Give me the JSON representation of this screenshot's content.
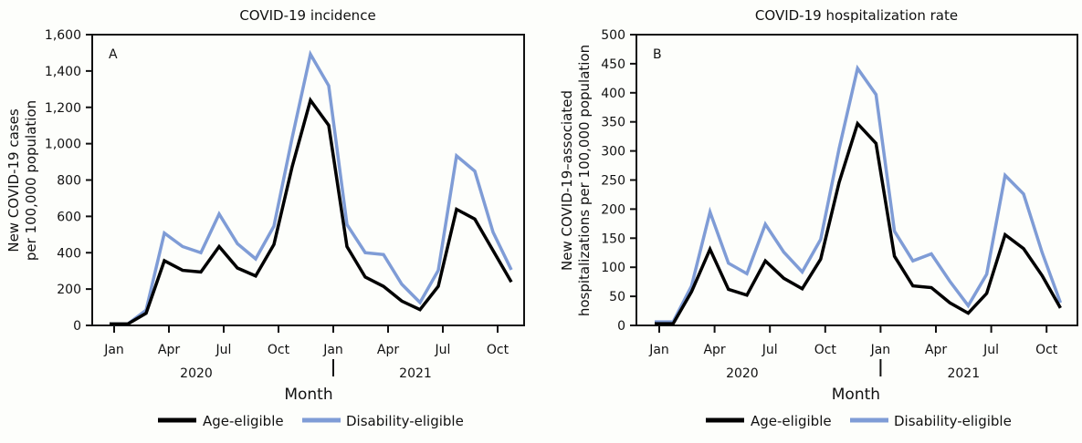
{
  "legend": {
    "items": [
      {
        "label": "Age-eligible",
        "color": "#000000"
      },
      {
        "label": "Disability-eligible",
        "color": "#7f9cd6"
      }
    ]
  },
  "chart_data": [
    {
      "type": "line",
      "panel_label": "A",
      "title": "COVID-19 incidence",
      "xlabel": "Month",
      "ylabel": [
        "New COVID-19 cases",
        "per 100,000 population"
      ],
      "x": [
        "2020-01",
        "2020-02",
        "2020-03",
        "2020-04",
        "2020-05",
        "2020-06",
        "2020-07",
        "2020-08",
        "2020-09",
        "2020-10",
        "2020-11",
        "2020-12",
        "2021-01",
        "2021-02",
        "2021-03",
        "2021-04",
        "2021-05",
        "2021-06",
        "2021-07",
        "2021-08",
        "2021-09",
        "2021-10",
        "2021-11"
      ],
      "x_tick_labels": [
        "Jan",
        "Apr",
        "Jul",
        "Oct",
        "Jan",
        "Apr",
        "Jul",
        "Oct"
      ],
      "year_labels": [
        "2020",
        "2021"
      ],
      "ylim": [
        0,
        1600
      ],
      "y_ticks": [
        0,
        200,
        400,
        600,
        800,
        1000,
        1200,
        1400,
        1600
      ],
      "y_tick_labels": [
        "0",
        "200",
        "400",
        "600",
        "800",
        "1,000",
        "1,200",
        "1,400",
        "1,600"
      ],
      "grid": false,
      "legend_position": "bottom",
      "series": [
        {
          "name": "Age-eligible",
          "values": [
            8,
            8,
            67,
            356,
            303,
            294,
            434,
            316,
            272,
            445,
            874,
            1239,
            1101,
            434,
            266,
            215,
            134,
            87,
            215,
            639,
            585,
            412,
            239
          ]
        },
        {
          "name": "Disability-eligible",
          "values": [
            8,
            8,
            84,
            508,
            434,
            400,
            613,
            450,
            366,
            546,
            1033,
            1492,
            1319,
            555,
            400,
            390,
            227,
            126,
            303,
            933,
            849,
            513,
            306
          ]
        }
      ]
    },
    {
      "type": "line",
      "panel_label": "B",
      "title": "COVID-19 hospitalization rate",
      "xlabel": "Month",
      "ylabel": [
        "New COVID-19–associated",
        "hospitalizations per 100,000 population"
      ],
      "x": [
        "2020-01",
        "2020-02",
        "2020-03",
        "2020-04",
        "2020-05",
        "2020-06",
        "2020-07",
        "2020-08",
        "2020-09",
        "2020-10",
        "2020-11",
        "2020-12",
        "2021-01",
        "2021-02",
        "2021-03",
        "2021-04",
        "2021-05",
        "2021-06",
        "2021-07",
        "2021-08",
        "2021-09",
        "2021-10",
        "2021-11"
      ],
      "x_tick_labels": [
        "Jan",
        "Apr",
        "Jul",
        "Oct",
        "Jan",
        "Apr",
        "Jul",
        "Oct"
      ],
      "year_labels": [
        "2020",
        "2021"
      ],
      "ylim": [
        0,
        500
      ],
      "y_ticks": [
        0,
        50,
        100,
        150,
        200,
        250,
        300,
        350,
        400,
        450,
        500
      ],
      "y_tick_labels": [
        "0",
        "50",
        "100",
        "150",
        "200",
        "250",
        "300",
        "350",
        "400",
        "450",
        "500"
      ],
      "grid": false,
      "legend_position": "bottom",
      "series": [
        {
          "name": "Age-eligible",
          "values": [
            3,
            3,
            58,
            131,
            62,
            52,
            111,
            81,
            63,
            114,
            246,
            347,
            313,
            119,
            68,
            65,
            39,
            21,
            55,
            156,
            132,
            86,
            30
          ]
        },
        {
          "name": "Disability-eligible",
          "values": [
            6,
            6,
            68,
            195,
            107,
            89,
            174,
            126,
            92,
            148,
            304,
            442,
            397,
            162,
            111,
            123,
            76,
            34,
            88,
            258,
            226,
            126,
            39
          ]
        }
      ]
    }
  ]
}
